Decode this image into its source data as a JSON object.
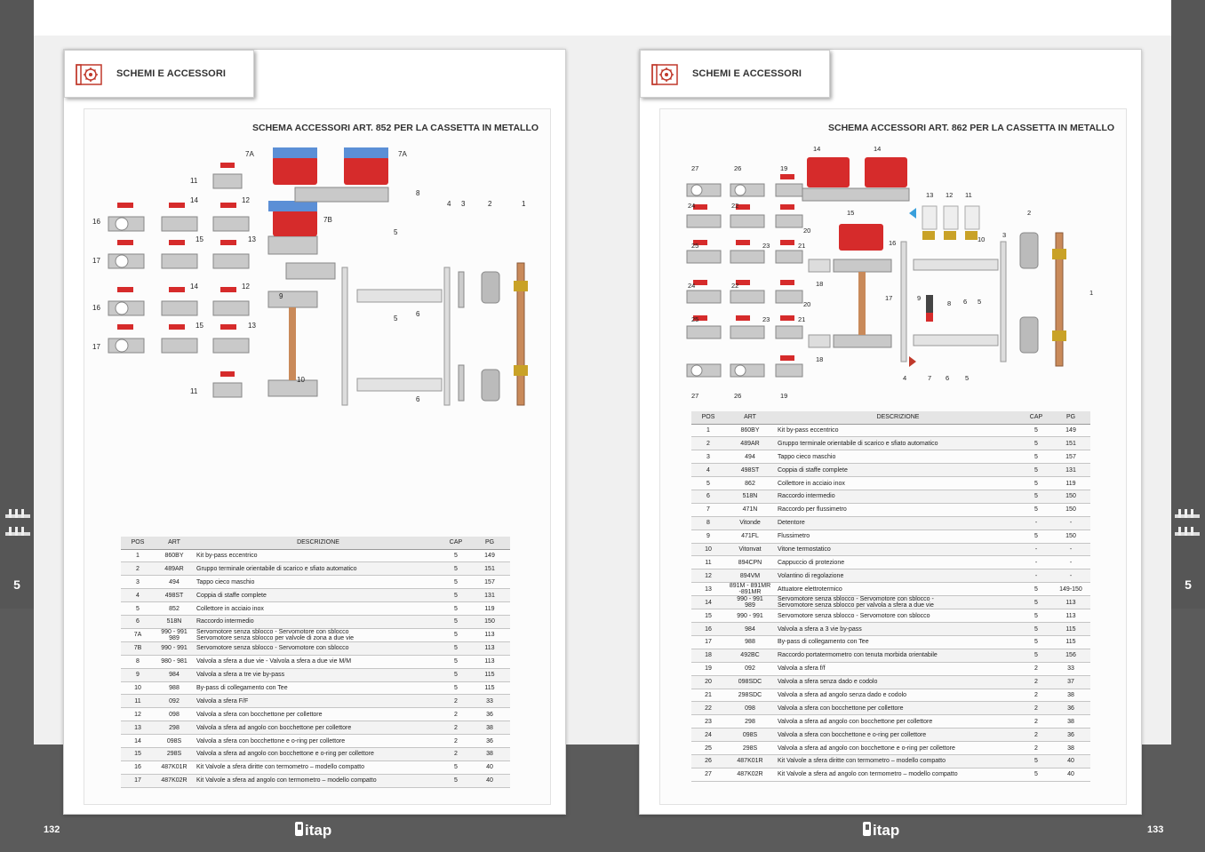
{
  "left": {
    "tab_label": "SCHEMI E ACCESSORI",
    "schema_title": "SCHEMA ACCESSORI ART. 852 PER LA CASSETTA IN METALLO",
    "page_number": "132",
    "side_number": "5",
    "diagram_labels": [
      "7A",
      "7A",
      "11",
      "8",
      "16",
      "14",
      "12",
      "4",
      "3",
      "2",
      "1",
      "7B",
      "5",
      "15",
      "13",
      "17",
      "9",
      "6",
      "16",
      "14",
      "12",
      "15",
      "13",
      "5",
      "17",
      "10",
      "6",
      "11"
    ],
    "table": {
      "headers": [
        "POS",
        "ART",
        "DESCRIZIONE",
        "CAP",
        "PG"
      ],
      "rows": [
        [
          "1",
          "860BY",
          "Kit by-pass eccentrico",
          "5",
          "149"
        ],
        [
          "2",
          "489AR",
          "Gruppo terminale orientabile di scarico e sfiato automatico",
          "5",
          "151"
        ],
        [
          "3",
          "494",
          "Tappo cieco maschio",
          "5",
          "157"
        ],
        [
          "4",
          "498ST",
          "Coppia di staffe complete",
          "5",
          "131"
        ],
        [
          "5",
          "852",
          "Collettore in acciaio inox",
          "5",
          "119"
        ],
        [
          "6",
          "518N",
          "Raccordo intermedio",
          "5",
          "150"
        ],
        [
          "7A",
          "990 - 991\n989",
          "Servomotore senza sblocco - Servomotore con sblocco\nServomotore senza sblocco per valvole di zona a due vie",
          "5",
          "113"
        ],
        [
          "7B",
          "990 - 991",
          "Servomotore senza sblocco - Servomotore con sblocco",
          "5",
          "113"
        ],
        [
          "8",
          "980 - 981",
          "Valvola a sfera a due vie - Valvola a sfera a due vie M/M",
          "5",
          "113"
        ],
        [
          "9",
          "984",
          "Valvola a sfera a tre vie by-pass",
          "5",
          "115"
        ],
        [
          "10",
          "988",
          "By-pass di collegamento con Tee",
          "5",
          "115"
        ],
        [
          "11",
          "092",
          "Valvola a sfera F/F",
          "2",
          "33"
        ],
        [
          "12",
          "098",
          "Valvola a sfera con bocchettone per collettore",
          "2",
          "36"
        ],
        [
          "13",
          "298",
          "Valvola a sfera ad angolo con bocchettone per collettore",
          "2",
          "38"
        ],
        [
          "14",
          "098S",
          "Valvola a sfera con bocchettone e o-ring per collettore",
          "2",
          "36"
        ],
        [
          "15",
          "298S",
          "Valvola a sfera ad angolo con bocchettone e o-ring per collettore",
          "2",
          "38"
        ],
        [
          "16",
          "487K01R",
          "Kit Valvole a sfera diritte con termometro – modello compatto",
          "5",
          "40"
        ],
        [
          "17",
          "487K02R",
          "Kit Valvole a sfera ad angolo con termometro – modello compatto",
          "5",
          "40"
        ]
      ]
    }
  },
  "right": {
    "tab_label": "SCHEMI E ACCESSORI",
    "schema_title": "SCHEMA ACCESSORI ART. 862 PER LA CASSETTA IN METALLO",
    "page_number": "133",
    "side_number": "5",
    "diagram_labels": [
      "14",
      "14",
      "27",
      "26",
      "19",
      "13",
      "12",
      "11",
      "24",
      "22",
      "15",
      "2",
      "20",
      "16",
      "10",
      "3",
      "25",
      "23",
      "21",
      "18",
      "1",
      "24",
      "22",
      "17",
      "9",
      "8",
      "6",
      "5",
      "20",
      "25",
      "23",
      "21",
      "18",
      "27",
      "26",
      "19",
      "4",
      "7",
      "6",
      "5"
    ],
    "table": {
      "headers": [
        "POS",
        "ART",
        "DESCRIZIONE",
        "CAP",
        "PG"
      ],
      "rows": [
        [
          "1",
          "860BY",
          "Kit by-pass eccentrico",
          "5",
          "149"
        ],
        [
          "2",
          "489AR",
          "Gruppo terminale orientabile di scarico e sfiato automatico",
          "5",
          "151"
        ],
        [
          "3",
          "494",
          "Tappo cieco maschio",
          "5",
          "157"
        ],
        [
          "4",
          "498ST",
          "Coppia di staffe complete",
          "5",
          "131"
        ],
        [
          "5",
          "862",
          "Collettore in acciaio inox",
          "5",
          "119"
        ],
        [
          "6",
          "518N",
          "Raccordo intermedio",
          "5",
          "150"
        ],
        [
          "7",
          "471N",
          "Raccordo per flussimetro",
          "5",
          "150"
        ],
        [
          "8",
          "Vitonde",
          "Detentore",
          "-",
          "-"
        ],
        [
          "9",
          "471FL",
          "Flussimetro",
          "5",
          "150"
        ],
        [
          "10",
          "Vitonvat",
          "Vitone termostatico",
          "-",
          "-"
        ],
        [
          "11",
          "894CPN",
          "Cappuccio di protezione",
          "-",
          "-"
        ],
        [
          "12",
          "894VM",
          "Volantino di regolazione",
          "-",
          "-"
        ],
        [
          "13",
          "891M - 891MR\n-891MR",
          "Attuatore elettrotermico",
          "5",
          "149-150"
        ],
        [
          "14",
          "990 - 991\n989",
          "Servomotore senza sblocco - Servomotore con sblocco -\nServomotore senza sblocco per valvola a sfera a due vie",
          "5",
          "113"
        ],
        [
          "15",
          "990 - 991",
          "Servomotore senza sblocco - Servomotore con sblocco",
          "5",
          "113"
        ],
        [
          "16",
          "984",
          "Valvola a sfera a 3 vie by-pass",
          "5",
          "115"
        ],
        [
          "17",
          "988",
          "By-pass di collegamento con Tee",
          "5",
          "115"
        ],
        [
          "18",
          "492BC",
          "Raccordo portatermometro con tenuta morbida orientabile",
          "5",
          "156"
        ],
        [
          "19",
          "092",
          "Valvola a sfera f/f",
          "2",
          "33"
        ],
        [
          "20",
          "098SDC",
          "Valvola a sfera senza dado e codolo",
          "2",
          "37"
        ],
        [
          "21",
          "298SDC",
          "Valvola a sfera ad angolo senza dado e codolo",
          "2",
          "38"
        ],
        [
          "22",
          "098",
          "Valvola a sfera con bocchettone per collettore",
          "2",
          "36"
        ],
        [
          "23",
          "298",
          "Valvola a sfera ad angolo con bocchettone per collettore",
          "2",
          "38"
        ],
        [
          "24",
          "098S",
          "Valvola a sfera con bocchettone e o-ring per collettore",
          "2",
          "36"
        ],
        [
          "25",
          "298S",
          "Valvola a sfera ad angolo con bocchettone e o-ring per collettore",
          "2",
          "38"
        ],
        [
          "26",
          "487K01R",
          "Kit Valvole a sfera diritte con termometro – modello compatto",
          "5",
          "40"
        ],
        [
          "27",
          "487K02R",
          "Kit Valvole a sfera ad angolo con termometro – modello compatto",
          "5",
          "40"
        ]
      ]
    }
  },
  "logo_text": "itap",
  "colors": {
    "accent_red": "#d62b2b",
    "brass": "#c9a227",
    "chrome": "#b9b9b9",
    "dark_band": "#5b5b5b"
  }
}
